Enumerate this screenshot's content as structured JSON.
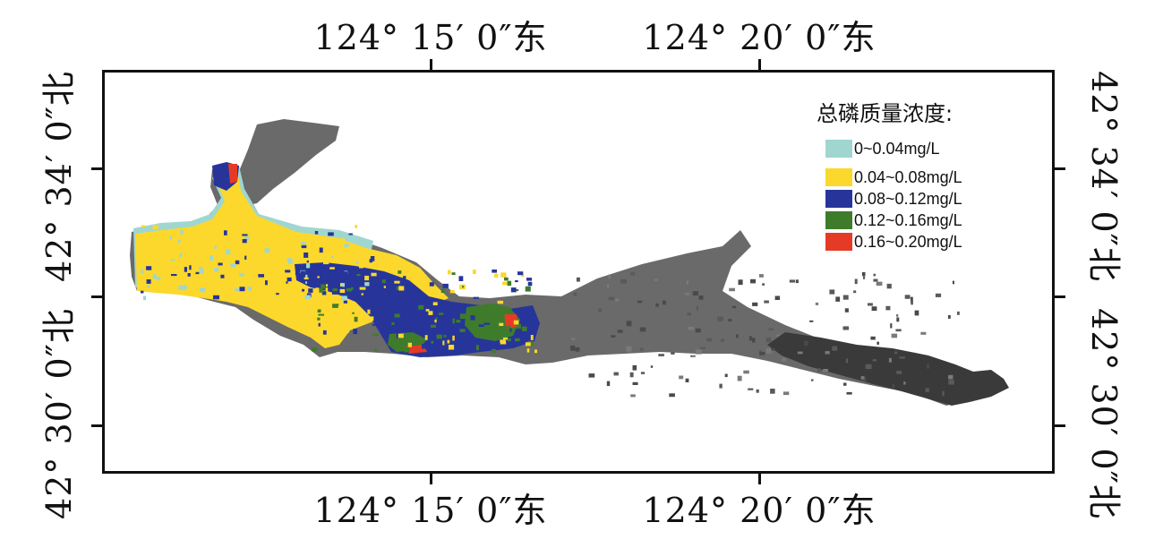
{
  "map": {
    "lon_labels": [
      "124°  15′ 0″东",
      "124°  20′ 0″东"
    ],
    "lat_labels": [
      "42°  34′ 0″北",
      "42°  30′ 0″北"
    ]
  },
  "legend": {
    "title": "总磷质量浓度:",
    "items": [
      {
        "label": "0~0.04mg/L",
        "color": "#9fd6d0"
      },
      {
        "label": "0.04~0.08mg/L",
        "color": "#fbd82b"
      },
      {
        "label": "0.08~0.12mg/L",
        "color": "#27359a"
      },
      {
        "label": "0.12~0.16mg/L",
        "color": "#3e7c2c"
      },
      {
        "label": "0.16~0.20mg/L",
        "color": "#e53b26"
      }
    ]
  },
  "colors": {
    "reservoir_unclassified": "#6a6a6a",
    "reservoir_dark": "#3a3a3a",
    "frame": "#111111"
  }
}
